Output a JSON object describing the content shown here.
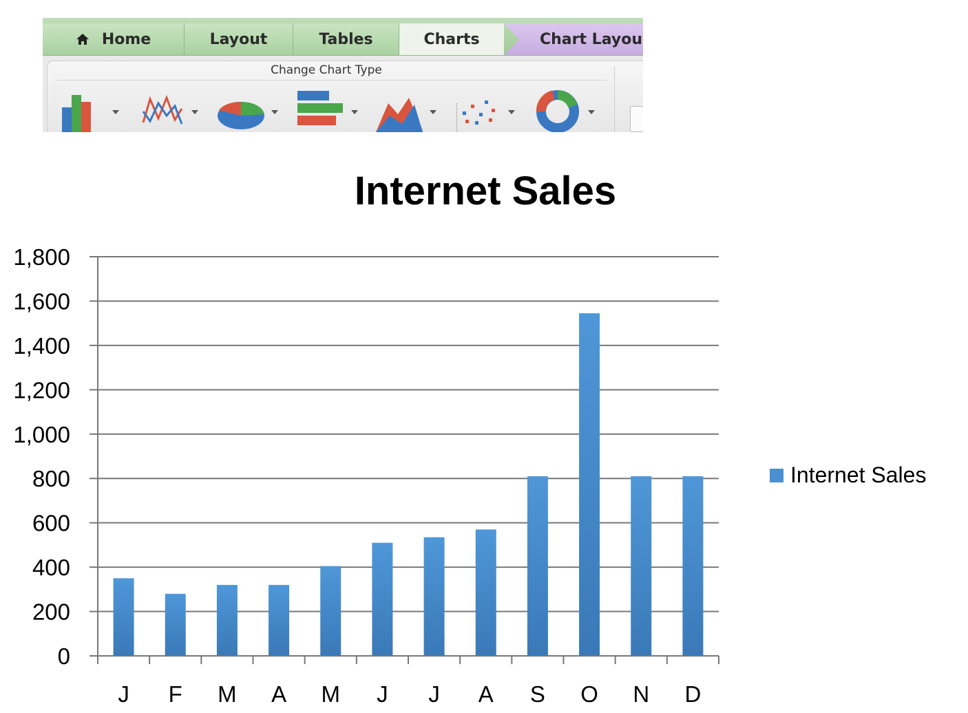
{
  "ribbon": {
    "tabs": [
      {
        "label": "Home",
        "icon": "home-icon"
      },
      {
        "label": "Layout"
      },
      {
        "label": "Tables"
      },
      {
        "label": "Charts",
        "active": true
      },
      {
        "label": "Chart Layou"
      }
    ],
    "group_title": "Change Chart Type",
    "gallery": [
      "column-chart-icon",
      "line-chart-icon",
      "pie-chart-icon",
      "bar-chart-icon",
      "area-chart-icon",
      "scatter-chart-icon",
      "doughnut-chart-icon"
    ]
  },
  "chart_data": {
    "type": "bar",
    "title": "Internet Sales",
    "xlabel": "",
    "ylabel": "",
    "categories": [
      "J",
      "F",
      "M",
      "A",
      "M",
      "J",
      "J",
      "A",
      "S",
      "O",
      "N",
      "D"
    ],
    "series": [
      {
        "name": "Internet Sales",
        "values": [
          350,
          280,
          320,
          320,
          405,
          510,
          535,
          570,
          810,
          1545,
          810,
          810
        ],
        "color": "#4a90d0"
      }
    ],
    "ylim": [
      0,
      1800
    ],
    "yticks": [
      "0",
      "200",
      "400",
      "600",
      "800",
      "1,000",
      "1,200",
      "1,400",
      "1,600",
      "1,800"
    ],
    "grid": true,
    "legend": "right"
  }
}
